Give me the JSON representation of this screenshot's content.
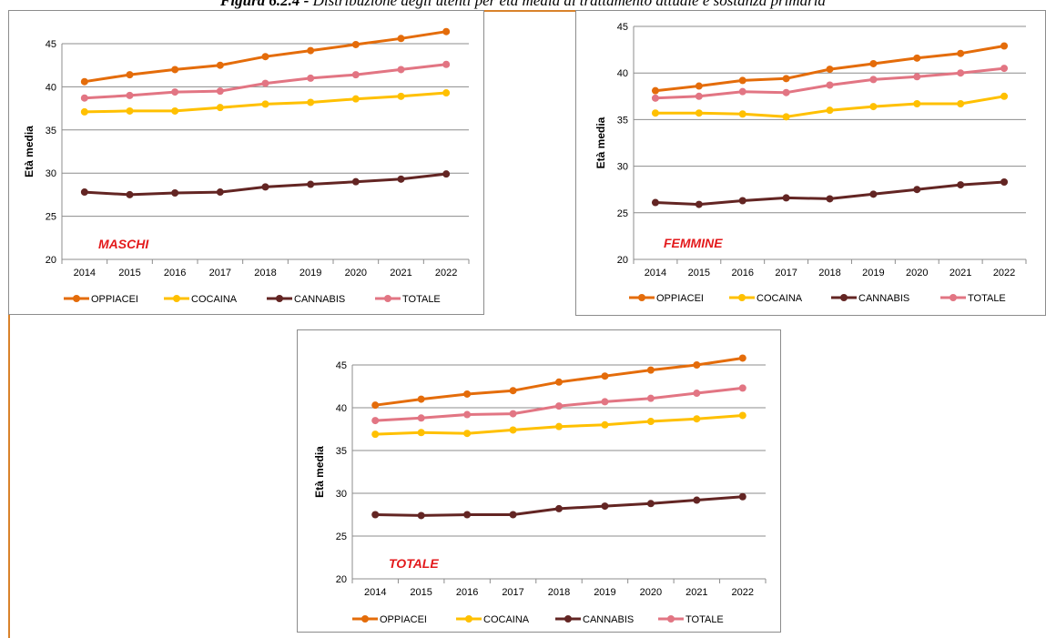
{
  "figure": {
    "label": "Figura 6.2.4 -",
    "caption": "Distribuzione degli utenti per età media di trattamento attuale e sostanza primaria"
  },
  "colors": {
    "OPPIACEI": "#e46c0a",
    "COCAINA": "#ffc000",
    "CANNABIS": "#632523",
    "TOTALE": "#e27583",
    "annotation": "#e31a1c",
    "frame": "#d9822b"
  },
  "chart_data": [
    {
      "type": "line",
      "annotation": "MASCHI",
      "ylabel": "Età media",
      "xlabel": "",
      "ylim": [
        20,
        45
      ],
      "yticks": [
        20,
        25,
        30,
        35,
        40,
        45
      ],
      "grid": true,
      "legend": "bottom",
      "categories": [
        "2014",
        "2015",
        "2016",
        "2017",
        "2018",
        "2019",
        "2020",
        "2021",
        "2022"
      ],
      "series": [
        {
          "name": "OPPIACEI",
          "values": [
            40.6,
            41.4,
            42.0,
            42.5,
            43.5,
            44.2,
            44.9,
            45.6,
            46.4
          ]
        },
        {
          "name": "COCAINA",
          "values": [
            37.1,
            37.2,
            37.2,
            37.6,
            38.0,
            38.2,
            38.6,
            38.9,
            39.3
          ]
        },
        {
          "name": "CANNABIS",
          "values": [
            27.8,
            27.5,
            27.7,
            27.8,
            28.4,
            28.7,
            29.0,
            29.3,
            29.9
          ]
        },
        {
          "name": "TOTALE",
          "values": [
            38.7,
            39.0,
            39.4,
            39.5,
            40.4,
            41.0,
            41.4,
            42.0,
            42.6
          ]
        }
      ]
    },
    {
      "type": "line",
      "annotation": "FEMMINE",
      "ylabel": "Età media",
      "xlabel": "",
      "ylim": [
        20,
        45
      ],
      "yticks": [
        20,
        25,
        30,
        35,
        40,
        45
      ],
      "grid": true,
      "legend": "bottom",
      "categories": [
        "2014",
        "2015",
        "2016",
        "2017",
        "2018",
        "2019",
        "2020",
        "2021",
        "2022"
      ],
      "series": [
        {
          "name": "OPPIACEI",
          "values": [
            38.1,
            38.6,
            39.2,
            39.4,
            40.4,
            41.0,
            41.6,
            42.1,
            42.9
          ]
        },
        {
          "name": "COCAINA",
          "values": [
            35.7,
            35.7,
            35.6,
            35.3,
            36.0,
            36.4,
            36.7,
            36.7,
            37.5
          ]
        },
        {
          "name": "CANNABIS",
          "values": [
            26.1,
            25.9,
            26.3,
            26.6,
            26.5,
            27.0,
            27.5,
            28.0,
            28.3
          ]
        },
        {
          "name": "TOTALE",
          "values": [
            37.3,
            37.5,
            38.0,
            37.9,
            38.7,
            39.3,
            39.6,
            40.0,
            40.5
          ]
        }
      ]
    },
    {
      "type": "line",
      "annotation": "TOTALE",
      "ylabel": "Età media",
      "xlabel": "",
      "ylim": [
        20,
        45
      ],
      "yticks": [
        20,
        25,
        30,
        35,
        40,
        45
      ],
      "grid": true,
      "legend": "bottom",
      "categories": [
        "2014",
        "2015",
        "2016",
        "2017",
        "2018",
        "2019",
        "2020",
        "2021",
        "2022"
      ],
      "series": [
        {
          "name": "OPPIACEI",
          "values": [
            40.3,
            41.0,
            41.6,
            42.0,
            43.0,
            43.7,
            44.4,
            45.0,
            45.8
          ]
        },
        {
          "name": "COCAINA",
          "values": [
            36.9,
            37.1,
            37.0,
            37.4,
            37.8,
            38.0,
            38.4,
            38.7,
            39.1
          ]
        },
        {
          "name": "CANNABIS",
          "values": [
            27.5,
            27.4,
            27.5,
            27.5,
            28.2,
            28.5,
            28.8,
            29.2,
            29.6
          ]
        },
        {
          "name": "TOTALE",
          "values": [
            38.5,
            38.8,
            39.2,
            39.3,
            40.2,
            40.7,
            41.1,
            41.7,
            42.3
          ]
        }
      ]
    }
  ]
}
